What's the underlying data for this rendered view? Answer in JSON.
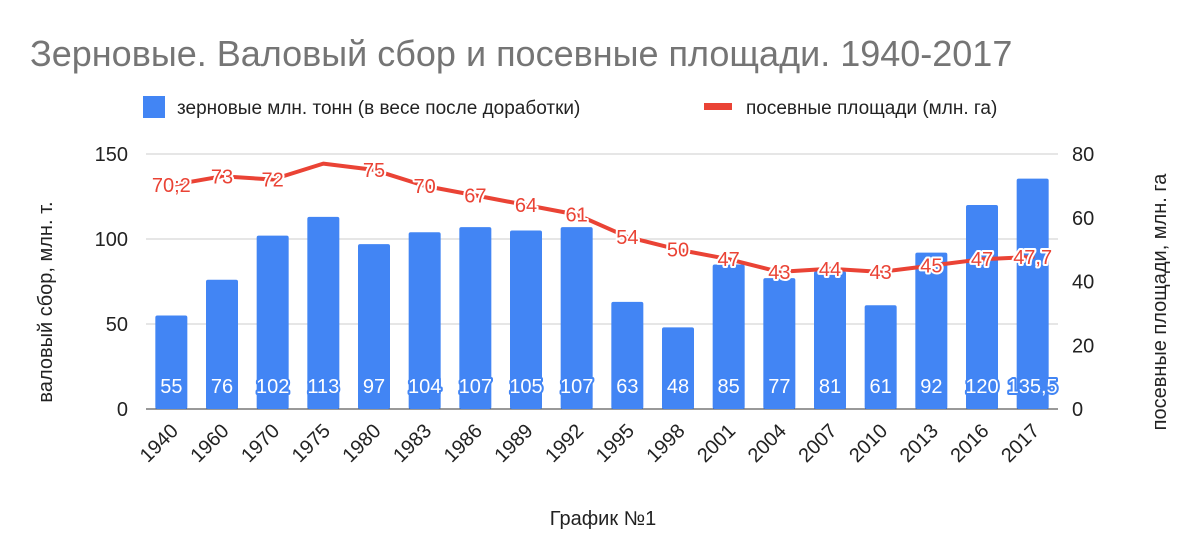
{
  "chart_data": {
    "type": "bar",
    "title": "Зерновые. Валовый сбор и посевные площади. 1940-2017",
    "categories": [
      "1940",
      "1960",
      "1970",
      "1975",
      "1980",
      "1983",
      "1986",
      "1989",
      "1992",
      "1995",
      "1998",
      "2001",
      "2004",
      "2007",
      "2010",
      "2013",
      "2016",
      "2017"
    ],
    "series": [
      {
        "name": "зерновые млн. тонн (в весе после доработки)",
        "type": "bar",
        "axis": "left",
        "color": "#4285f4",
        "values": [
          55,
          76,
          102,
          113,
          97,
          104,
          107,
          105,
          107,
          63,
          48,
          85,
          77,
          81,
          61,
          92,
          120,
          135.5
        ],
        "labels": [
          "55",
          "76",
          "102",
          "113",
          "97",
          "104",
          "107",
          "105",
          "107",
          "63",
          "48",
          "85",
          "77",
          "81",
          "61",
          "92",
          "120",
          "135,5"
        ]
      },
      {
        "name": "посевные площади (млн. га)",
        "type": "line",
        "axis": "right",
        "color": "#ea4335",
        "values": [
          70.2,
          73,
          72,
          77,
          75,
          70,
          67,
          64,
          61,
          54,
          50,
          47,
          43,
          44,
          43,
          45,
          47,
          47.7
        ],
        "labels": [
          "70;2",
          "73",
          "72",
          "",
          "75",
          "70",
          "67",
          "64",
          "61",
          "54",
          "50",
          "47",
          "43",
          "44",
          "43",
          "45",
          "47",
          "47,7"
        ]
      }
    ],
    "y_left": {
      "label": "валовый сбор, млн. т.",
      "min": 0,
      "max": 150,
      "ticks": [
        0,
        50,
        100,
        150
      ]
    },
    "y_right": {
      "label": "посевные площади, млн. га",
      "min": 0,
      "max": 80,
      "ticks": [
        0,
        20,
        40,
        60,
        80
      ]
    },
    "xlabel": "График №1",
    "grid": true,
    "legend_position": "top"
  }
}
